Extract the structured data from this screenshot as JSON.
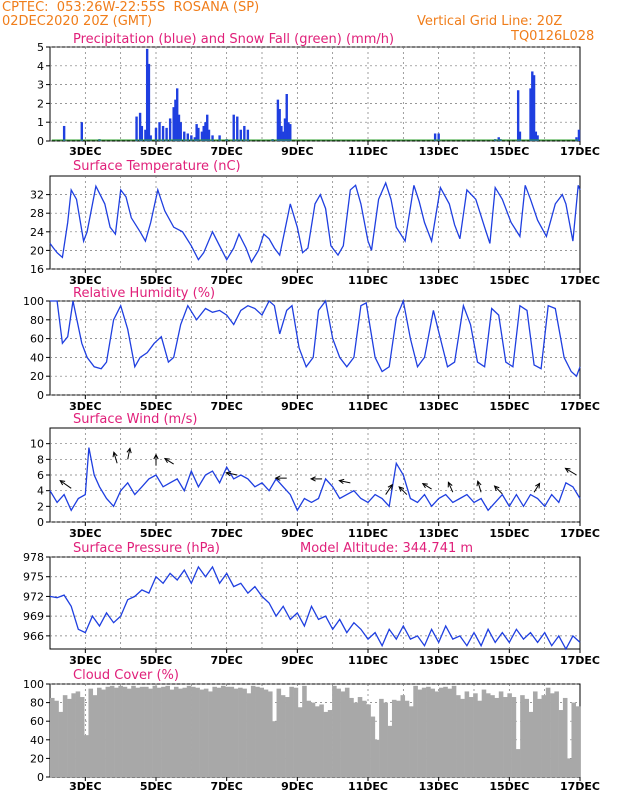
{
  "header": {
    "station": "CPTEC:  053:26W-22:55S  ROSANA (SP)",
    "init": "02DEC2020 20Z (GMT)",
    "grid_note": "Vertical Grid Line: 20Z",
    "model_id": "TQ0126L028"
  },
  "colors": {
    "header": "#f07d1a",
    "title": "#e0207a",
    "series": "#1f3fe0",
    "snow": "#2ca02c",
    "cloud": "#a8a8a8"
  },
  "x_labels": [
    "3DEC",
    "5DEC",
    "7DEC",
    "9DEC",
    "11DEC",
    "13DEC",
    "15DEC",
    "17DEC"
  ],
  "chart_data": [
    {
      "type": "bar",
      "title": "Precipitation (blue) and Snow Fall (green) (mm/h)",
      "ylim": [
        0,
        5
      ],
      "yticks": [
        "0",
        "1",
        "2",
        "3",
        "4",
        "5"
      ],
      "x": [
        2.4,
        2.9,
        3.4,
        4.45,
        4.55,
        4.6,
        4.7,
        4.75,
        4.8,
        4.85,
        5.0,
        5.1,
        5.2,
        5.3,
        5.4,
        5.5,
        5.55,
        5.6,
        5.65,
        5.7,
        5.8,
        5.9,
        6.0,
        6.1,
        6.15,
        6.2,
        6.3,
        6.35,
        6.4,
        6.45,
        6.5,
        6.6,
        6.8,
        7.0,
        7.2,
        7.3,
        7.4,
        7.5,
        7.6,
        8.3,
        8.45,
        8.5,
        8.55,
        8.6,
        8.65,
        8.7,
        8.75,
        8.8,
        12.9,
        13.0,
        14.6,
        14.7,
        14.75,
        15.25,
        15.3,
        15.6,
        15.65,
        15.7,
        15.75,
        15.8,
        16.9,
        16.97
      ],
      "values": [
        0.8,
        1.0,
        0.1,
        1.3,
        1.5,
        0.8,
        0.6,
        4.9,
        4.1,
        0.3,
        0.7,
        1.0,
        0.8,
        0.7,
        1.2,
        1.8,
        2.2,
        2.8,
        1.4,
        1.0,
        0.5,
        0.4,
        0.3,
        0.2,
        0.9,
        0.7,
        0.5,
        0.8,
        1.0,
        1.4,
        0.6,
        0.3,
        0.3,
        0.1,
        1.4,
        1.3,
        0.6,
        0.8,
        0.6,
        0.1,
        2.2,
        1.7,
        0.8,
        0.5,
        1.2,
        2.5,
        1.0,
        0.9,
        0.4,
        0.4,
        0.1,
        0.2,
        0.1,
        2.7,
        0.5,
        2.8,
        3.7,
        3.5,
        0.5,
        0.3,
        0.2,
        0.6
      ],
      "snow": [
        {
          "x": 3.0,
          "value": 0.03
        },
        {
          "x": 7.0,
          "value": 0.03
        },
        {
          "x": 10.0,
          "value": 0.03
        },
        {
          "x": 13.0,
          "value": 0.03
        }
      ]
    },
    {
      "type": "line",
      "title": "Surface Temperature (nC)",
      "ylim": [
        16,
        36
      ],
      "yticks": [
        "16",
        "20",
        "24",
        "28",
        "32"
      ],
      "x": [
        2,
        2.1,
        2.2,
        2.35,
        2.5,
        2.6,
        2.75,
        2.95,
        3.05,
        3.3,
        3.55,
        3.7,
        3.85,
        4.0,
        4.15,
        4.3,
        4.55,
        4.7,
        4.85,
        5.05,
        5.25,
        5.5,
        5.75,
        6.0,
        6.2,
        6.35,
        6.6,
        6.8,
        7.0,
        7.2,
        7.35,
        7.55,
        7.7,
        7.9,
        8.05,
        8.2,
        8.35,
        8.5,
        8.65,
        8.8,
        9.0,
        9.15,
        9.3,
        9.5,
        9.65,
        9.8,
        9.95,
        10.15,
        10.3,
        10.5,
        10.65,
        10.8,
        11.0,
        11.1,
        11.3,
        11.5,
        11.65,
        11.8,
        12.05,
        12.3,
        12.45,
        12.6,
        12.8,
        13.05,
        13.3,
        13.45,
        13.6,
        13.8,
        14.05,
        14.3,
        14.45,
        14.6,
        14.8,
        15.05,
        15.3,
        15.45,
        15.6,
        15.8,
        16.05,
        16.3,
        16.5,
        16.6,
        16.8,
        16.95,
        17.0
      ],
      "values": [
        21.5,
        20.5,
        19.5,
        18.5,
        26.0,
        33.0,
        31.0,
        22.0,
        24.0,
        33.8,
        30.0,
        25.0,
        23.5,
        33.0,
        31.5,
        27.0,
        24.0,
        22.0,
        26.0,
        33.0,
        28.5,
        25.0,
        24.0,
        21.0,
        18.0,
        19.5,
        24.0,
        21.0,
        18.0,
        20.5,
        23.5,
        20.5,
        17.5,
        20.0,
        23.5,
        22.5,
        20.5,
        19.0,
        24.5,
        30.0,
        25.0,
        19.5,
        20.5,
        30.0,
        32.0,
        29.0,
        21.0,
        19.0,
        21.0,
        33.0,
        34.0,
        30.0,
        22.0,
        20.0,
        31.0,
        34.5,
        31.0,
        25.0,
        22.0,
        34.0,
        30.5,
        26.0,
        22.0,
        33.5,
        30.0,
        25.5,
        22.5,
        33.0,
        31.0,
        25.0,
        21.5,
        33.5,
        31.0,
        26.0,
        23.0,
        34.0,
        31.0,
        26.5,
        23.0,
        30.0,
        32.0,
        30.0,
        22.0,
        34.0,
        33.0
      ],
      "xlabel": "",
      "ylabel": ""
    },
    {
      "type": "line",
      "title": "Relative Humidity (%)",
      "ylim": [
        0,
        100
      ],
      "yticks": [
        "0",
        "20",
        "40",
        "60",
        "80",
        "100"
      ],
      "x": [
        2,
        2.2,
        2.35,
        2.5,
        2.65,
        2.9,
        3.05,
        3.25,
        3.45,
        3.6,
        3.8,
        4.0,
        4.2,
        4.4,
        4.55,
        4.75,
        4.95,
        5.15,
        5.35,
        5.5,
        5.7,
        5.9,
        6.15,
        6.4,
        6.6,
        6.8,
        7.0,
        7.2,
        7.4,
        7.6,
        7.8,
        8.0,
        8.2,
        8.35,
        8.5,
        8.7,
        8.85,
        9.05,
        9.25,
        9.45,
        9.6,
        9.8,
        10.0,
        10.2,
        10.4,
        10.6,
        10.8,
        10.95,
        11.2,
        11.4,
        11.6,
        11.8,
        12.0,
        12.2,
        12.4,
        12.6,
        12.85,
        13.05,
        13.25,
        13.45,
        13.7,
        13.9,
        14.1,
        14.3,
        14.5,
        14.7,
        14.9,
        15.1,
        15.3,
        15.5,
        15.7,
        15.9,
        16.1,
        16.3,
        16.55,
        16.75,
        16.9,
        17.0
      ],
      "values": [
        100,
        100,
        55,
        62,
        100,
        55,
        40,
        30,
        28,
        35,
        80,
        95,
        70,
        30,
        40,
        45,
        55,
        62,
        35,
        40,
        75,
        95,
        80,
        92,
        88,
        90,
        85,
        75,
        90,
        95,
        92,
        85,
        100,
        95,
        65,
        90,
        95,
        50,
        30,
        40,
        90,
        100,
        60,
        40,
        30,
        40,
        95,
        98,
        40,
        25,
        30,
        82,
        100,
        60,
        30,
        40,
        90,
        60,
        30,
        35,
        95,
        75,
        35,
        30,
        92,
        85,
        35,
        30,
        95,
        90,
        32,
        28,
        95,
        92,
        40,
        25,
        20,
        30
      ],
      "xlabel": "",
      "ylabel": ""
    },
    {
      "type": "line",
      "title": "Surface Wind (m/s)",
      "ylim": [
        0,
        12
      ],
      "yticks": [
        "0",
        "2",
        "4",
        "6",
        "8",
        "10"
      ],
      "x": [
        2,
        2.2,
        2.4,
        2.6,
        2.8,
        3.0,
        3.1,
        3.25,
        3.4,
        3.6,
        3.8,
        4.0,
        4.2,
        4.4,
        4.6,
        4.8,
        5.0,
        5.2,
        5.4,
        5.6,
        5.8,
        6.0,
        6.2,
        6.4,
        6.6,
        6.8,
        7.0,
        7.2,
        7.4,
        7.6,
        7.8,
        8.0,
        8.2,
        8.4,
        8.6,
        8.8,
        9.0,
        9.2,
        9.4,
        9.6,
        9.8,
        10.0,
        10.2,
        10.4,
        10.6,
        10.8,
        11.0,
        11.2,
        11.4,
        11.6,
        11.8,
        12.0,
        12.2,
        12.4,
        12.6,
        12.8,
        13.0,
        13.2,
        13.4,
        13.6,
        13.8,
        14.0,
        14.2,
        14.4,
        14.6,
        14.8,
        15.0,
        15.2,
        15.4,
        15.6,
        15.8,
        16.0,
        16.2,
        16.4,
        16.6,
        16.8,
        17.0
      ],
      "values": [
        4.0,
        2.5,
        3.5,
        1.5,
        3.0,
        3.5,
        9.5,
        6.0,
        4.5,
        3.0,
        2.0,
        4.0,
        5.0,
        3.5,
        4.5,
        5.5,
        6.0,
        4.5,
        5.0,
        5.5,
        4.0,
        6.5,
        4.5,
        6.0,
        6.5,
        5.0,
        7.0,
        5.5,
        6.0,
        5.5,
        4.5,
        5.0,
        4.0,
        5.5,
        4.5,
        3.5,
        1.5,
        3.0,
        2.5,
        3.0,
        5.5,
        4.5,
        3.0,
        3.5,
        4.0,
        3.0,
        2.5,
        3.5,
        3.0,
        2.0,
        7.5,
        6.0,
        3.0,
        2.5,
        3.5,
        2.0,
        3.0,
        3.5,
        2.5,
        3.0,
        3.5,
        2.5,
        3.0,
        1.5,
        2.5,
        3.5,
        2.0,
        3.5,
        2.0,
        3.5,
        3.0,
        2.0,
        3.5,
        2.5,
        5.0,
        4.5,
        3.0
      ],
      "xlabel": "",
      "ylabel": ""
    },
    {
      "type": "line",
      "title": "Surface Pressure (hPa)",
      "subtitle": "Model Altitude: 344.741 m",
      "ylim": [
        964,
        978
      ],
      "yticks": [
        "966",
        "969",
        "972",
        "975",
        "978"
      ],
      "x": [
        2,
        2.2,
        2.4,
        2.6,
        2.8,
        3.0,
        3.2,
        3.4,
        3.6,
        3.8,
        4.0,
        4.2,
        4.4,
        4.6,
        4.8,
        5.0,
        5.2,
        5.4,
        5.6,
        5.8,
        6.0,
        6.2,
        6.4,
        6.6,
        6.8,
        7.0,
        7.2,
        7.4,
        7.6,
        7.8,
        8.0,
        8.2,
        8.4,
        8.6,
        8.8,
        9.0,
        9.2,
        9.4,
        9.6,
        9.8,
        10.0,
        10.2,
        10.4,
        10.6,
        10.8,
        11.0,
        11.2,
        11.4,
        11.6,
        11.8,
        12.0,
        12.2,
        12.4,
        12.6,
        12.8,
        13.0,
        13.2,
        13.4,
        13.6,
        13.8,
        14.0,
        14.2,
        14.4,
        14.6,
        14.8,
        15.0,
        15.2,
        15.4,
        15.6,
        15.8,
        16.0,
        16.2,
        16.4,
        16.6,
        16.8,
        17.0
      ],
      "values": [
        972.0,
        971.8,
        972.2,
        970.5,
        967.0,
        966.5,
        969.0,
        967.5,
        969.5,
        968.0,
        969.0,
        971.5,
        972.0,
        973.0,
        972.5,
        975.0,
        974.0,
        975.5,
        974.5,
        976.0,
        974.0,
        976.5,
        975.0,
        976.5,
        974.0,
        975.5,
        973.5,
        974.0,
        972.5,
        973.5,
        972.0,
        971.0,
        969.0,
        970.5,
        968.5,
        969.5,
        967.5,
        970.5,
        968.5,
        969.0,
        967.0,
        968.5,
        966.5,
        968.0,
        967.0,
        965.5,
        966.5,
        964.5,
        967.0,
        965.5,
        967.5,
        965.5,
        966.0,
        964.5,
        967.0,
        965.0,
        967.5,
        965.5,
        966.0,
        964.5,
        966.5,
        964.5,
        967.0,
        965.0,
        966.5,
        965.0,
        967.0,
        965.5,
        966.5,
        965.0,
        966.5,
        964.5,
        966.0,
        964.0,
        966.0,
        965.0
      ],
      "xlabel": "",
      "ylabel": ""
    },
    {
      "type": "bar",
      "title": "Cloud Cover (%)",
      "ylim": [
        0,
        100
      ],
      "yticks": [
        "0",
        "20",
        "40",
        "60",
        "80",
        "100"
      ],
      "x_start": 2,
      "x_step": 0.125,
      "values": [
        85,
        82,
        70,
        88,
        84,
        90,
        92,
        86,
        45,
        95,
        88,
        96,
        94,
        97,
        98,
        96,
        98,
        97,
        95,
        98,
        96,
        97,
        97,
        95,
        98,
        96,
        97,
        98,
        94,
        97,
        95,
        96,
        98,
        97,
        96,
        94,
        95,
        92,
        97,
        96,
        98,
        97,
        97,
        95,
        96,
        95,
        90,
        98,
        97,
        96,
        94,
        92,
        60,
        95,
        88,
        86,
        97,
        96,
        75,
        98,
        82,
        80,
        76,
        78,
        70,
        72,
        98,
        95,
        92,
        96,
        85,
        80,
        86,
        82,
        78,
        65,
        40,
        84,
        80,
        55,
        83,
        82,
        88,
        82,
        76,
        98,
        94,
        96,
        97,
        95,
        92,
        96,
        97,
        95,
        98,
        88,
        84,
        92,
        86,
        90,
        82,
        94,
        90,
        88,
        85,
        92,
        86,
        90,
        86,
        30,
        88,
        84,
        70,
        92,
        84,
        88,
        96,
        90,
        92,
        72,
        85,
        20,
        80,
        76
      ],
      "xlabel": "",
      "ylabel": ""
    }
  ]
}
